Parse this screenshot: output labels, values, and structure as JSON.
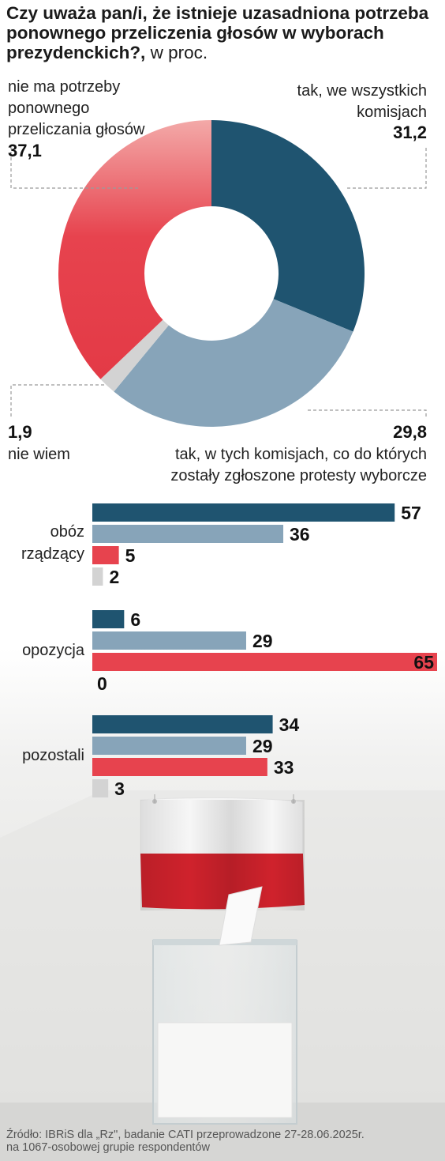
{
  "title": {
    "question": "Czy uważa pan/i, że istnieje uzasadniona potrzeba ponownego przeliczenia głosów w wyborach prezydenckich?,",
    "unit": "w proc."
  },
  "colors": {
    "dark_blue": "#1f5470",
    "light_blue": "#87a4b9",
    "red": "#e7434e",
    "gray": "#d3d3d3"
  },
  "chart_data": [
    {
      "type": "pie",
      "variant": "donut",
      "slices": [
        {
          "label": [
            "tak, we wszystkich",
            "komisjach"
          ],
          "value": 31.2,
          "value_text": "31,2",
          "color": "#1f5470"
        },
        {
          "label": [
            "tak, w tych komisjach, co do których",
            "zostały zgłoszone protesty wyborcze"
          ],
          "value": 29.8,
          "value_text": "29,8",
          "color": "#87a4b9"
        },
        {
          "label": [
            "nie wiem"
          ],
          "value": 1.9,
          "value_text": "1,9",
          "color": "#d3d3d3"
        },
        {
          "label": [
            "nie ma potrzeby",
            "ponownego",
            "przeliczania głosów"
          ],
          "value": 37.1,
          "value_text": "37,1",
          "color": "#e7434e"
        }
      ]
    },
    {
      "type": "bar",
      "orientation": "horizontal",
      "xlim": [
        0,
        65
      ],
      "groups": [
        {
          "label": [
            "obóz",
            "rządzący"
          ],
          "values": [
            57,
            36,
            5,
            2
          ]
        },
        {
          "label": [
            "opozycja"
          ],
          "values": [
            6,
            29,
            65,
            0
          ]
        },
        {
          "label": [
            "pozostali"
          ],
          "values": [
            34,
            29,
            33,
            3
          ]
        }
      ],
      "series_colors": [
        "#1f5470",
        "#87a4b9",
        "#e7434e",
        "#d3d3d3"
      ]
    }
  ],
  "source": {
    "line1": "Źródło: IBRiS dla „Rz\", badanie CATI przeprowadzone 27-28.06.2025r.",
    "line2": "na 1067-osobowej grupie respondentów"
  }
}
